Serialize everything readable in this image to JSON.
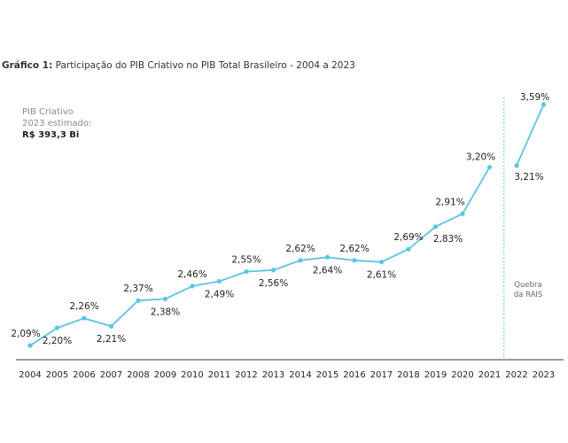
{
  "title": {
    "prefix": "Gráfico 1:",
    "text": "Participação do PIB Criativo no PIB Total Brasileiro - 2004 a 2023"
  },
  "note": {
    "line1": "PIB Criativo",
    "line2": "2023 estimado:",
    "line3": "R$ 393,3 Bi"
  },
  "break_label": {
    "line1": "Quebra",
    "line2": "da RAIS"
  },
  "colors": {
    "line": "#5bc4e3",
    "axis": "#333333",
    "break": "#5bc4e3"
  },
  "chart_data": {
    "type": "line",
    "title": "Participação do PIB Criativo no PIB Total Brasileiro - 2004 a 2023",
    "categories": [
      "2004",
      "2005",
      "2006",
      "2007",
      "2008",
      "2009",
      "2010",
      "2011",
      "2012",
      "2013",
      "2014",
      "2015",
      "2016",
      "2017",
      "2018",
      "2019",
      "2020",
      "2021",
      "2022",
      "2023"
    ],
    "series": [
      {
        "values": [
          2.09,
          2.2,
          2.26,
          2.21,
          2.37,
          2.38,
          2.46,
          2.49,
          2.55,
          2.56,
          2.62,
          2.64,
          2.62,
          2.61,
          2.69,
          2.83,
          2.91,
          3.2,
          3.21,
          3.59
        ],
        "labels": [
          "2,09%",
          "2,20%",
          "2,26%",
          "2,21%",
          "2,37%",
          "2,38%",
          "2,46%",
          "2,49%",
          "2,55%",
          "2,56%",
          "2,62%",
          "2,64%",
          "2,62%",
          "2,61%",
          "2,69%",
          "2,83%",
          "2,91%",
          "3,20%",
          "3,21%",
          "3,59%"
        ]
      }
    ],
    "segments": [
      [
        0,
        17
      ],
      [
        18,
        19
      ]
    ],
    "break_between": [
      "2021",
      "2022"
    ],
    "unit": "%",
    "ylim": [
      2.0,
      3.65
    ],
    "grid": false,
    "legend": "none"
  }
}
